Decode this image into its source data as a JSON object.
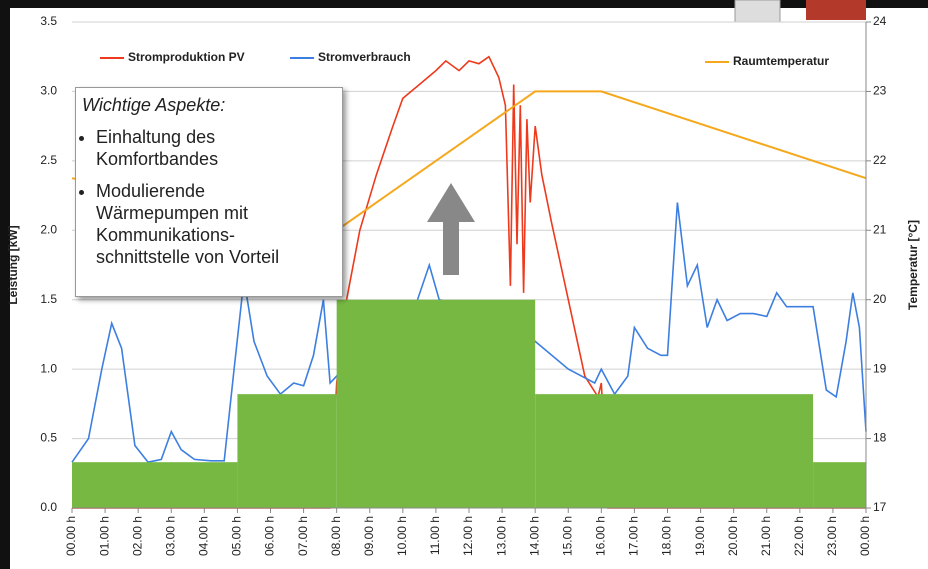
{
  "chart_data": {
    "type": "combo",
    "y_label": "Leistung [kW]",
    "y2_label": "Temperatur [°C]",
    "xlim": [
      0,
      24
    ],
    "xticks": [
      {
        "value": 0,
        "label": "00.00 h"
      },
      {
        "value": 1,
        "label": "01.00 h"
      },
      {
        "value": 2,
        "label": "02.00 h"
      },
      {
        "value": 3,
        "label": "03.00 h"
      },
      {
        "value": 4,
        "label": "04.00 h"
      },
      {
        "value": 5,
        "label": "05.00 h"
      },
      {
        "value": 6,
        "label": "06.00 h"
      },
      {
        "value": 7,
        "label": "07.00 h"
      },
      {
        "value": 8,
        "label": "08.00 h"
      },
      {
        "value": 9,
        "label": "09.00 h"
      },
      {
        "value": 10,
        "label": "10.00 h"
      },
      {
        "value": 11,
        "label": "11.00 h"
      },
      {
        "value": 12,
        "label": "12.00 h"
      },
      {
        "value": 13,
        "label": "13.00 h"
      },
      {
        "value": 14,
        "label": "14.00 h"
      },
      {
        "value": 15,
        "label": "15.00 h"
      },
      {
        "value": 16,
        "label": "16.00 h"
      },
      {
        "value": 17,
        "label": "17.00 h"
      },
      {
        "value": 18,
        "label": "18.00 h"
      },
      {
        "value": 19,
        "label": "19.00 h"
      },
      {
        "value": 20,
        "label": "20.00 h"
      },
      {
        "value": 21,
        "label": "21.00 h"
      },
      {
        "value": 22,
        "label": "22.00 h"
      },
      {
        "value": 23,
        "label": "23.00 h"
      },
      {
        "value": 24,
        "label": "00.00 h"
      }
    ],
    "ylim": [
      0,
      3.5
    ],
    "yticks": [
      {
        "value": 0,
        "label": "0.0"
      },
      0.5,
      {
        "value": 1,
        "label": "1.0"
      },
      1.5,
      {
        "value": 2,
        "label": "2.0"
      },
      2.5,
      {
        "value": 3,
        "label": "3.0"
      },
      3.5
    ],
    "y2lim": [
      17,
      24
    ],
    "y2ticks": [
      17,
      18,
      19,
      20,
      21,
      22,
      23,
      24
    ],
    "grid": true,
    "steps": {
      "color": "#77b843",
      "bins": [
        0,
        5,
        8,
        14,
        22.4,
        24
      ],
      "values": [
        0.33,
        0.82,
        1.5,
        0.82,
        0.33
      ]
    },
    "series": [
      {
        "name": "Stromproduktion PV",
        "color": "#ee3a1c",
        "x": [
          0,
          7.8,
          8.0,
          8.3,
          8.7,
          9.2,
          9.7,
          10.0,
          10.5,
          11.0,
          11.3,
          11.7,
          12.0,
          12.3,
          12.6,
          12.9,
          13.1,
          13.25,
          13.35,
          13.45,
          13.55,
          13.65,
          13.75,
          13.85,
          14.0,
          14.2,
          14.5,
          15.0,
          15.5,
          15.9,
          16.0,
          16.2,
          24
        ],
        "values": [
          0,
          0,
          0.9,
          1.5,
          2.0,
          2.4,
          2.75,
          2.95,
          3.05,
          3.15,
          3.22,
          3.15,
          3.22,
          3.2,
          3.25,
          3.1,
          2.9,
          1.6,
          3.05,
          1.9,
          2.9,
          1.55,
          2.8,
          2.2,
          2.75,
          2.4,
          2.05,
          1.5,
          0.95,
          0.8,
          0.9,
          0,
          0
        ]
      },
      {
        "name": "Stromverbrauch",
        "color": "#3d7fe0",
        "x": [
          0,
          0.5,
          0.9,
          1.2,
          1.5,
          1.9,
          2.3,
          2.7,
          3.0,
          3.3,
          3.7,
          4.2,
          4.6,
          4.9,
          5.2,
          5.5,
          5.9,
          6.3,
          6.7,
          7.0,
          7.3,
          7.6,
          7.8,
          8.0,
          8.3,
          8.6,
          9.5,
          10.3,
          10.8,
          11.1,
          11.8,
          13.0,
          14.0,
          15.0,
          15.8,
          16.0,
          16.4,
          16.8,
          17.0,
          17.4,
          17.8,
          18.0,
          18.3,
          18.6,
          18.9,
          19.2,
          19.5,
          19.8,
          20.2,
          20.6,
          21.0,
          21.3,
          21.6,
          22.0,
          22.4,
          22.8,
          23.1,
          23.4,
          23.6,
          23.8,
          24
        ],
        "values": [
          0.33,
          0.5,
          1.0,
          1.33,
          1.15,
          0.45,
          0.33,
          0.35,
          0.55,
          0.42,
          0.35,
          0.34,
          0.34,
          1.0,
          1.65,
          1.2,
          0.95,
          0.82,
          0.9,
          0.88,
          1.1,
          1.5,
          0.9,
          0.95,
          1.05,
          1.1,
          1.3,
          1.4,
          1.75,
          1.5,
          1.45,
          1.4,
          1.2,
          1.0,
          0.9,
          1.0,
          0.82,
          0.95,
          1.3,
          1.15,
          1.1,
          1.1,
          2.2,
          1.6,
          1.75,
          1.3,
          1.5,
          1.35,
          1.4,
          1.4,
          1.38,
          1.55,
          1.45,
          1.45,
          1.45,
          0.85,
          0.8,
          1.2,
          1.55,
          1.3,
          0.55
        ]
      },
      {
        "name": "Raumtemperatur",
        "color": "#f5a81c",
        "axis": "y2",
        "x": [
          0,
          8,
          14,
          16,
          24
        ],
        "values": [
          21.75,
          21.0,
          23,
          23,
          21.75
        ]
      }
    ],
    "annotation": {
      "title": "Wichtige Aspekte:",
      "bullets": [
        [
          "Einhaltung des",
          "Komfortbandes"
        ],
        [
          "Modulierende",
          "Wärmepumpen mit",
          "Kommunikations-",
          "schnittstelle von Vorteil"
        ]
      ]
    }
  }
}
